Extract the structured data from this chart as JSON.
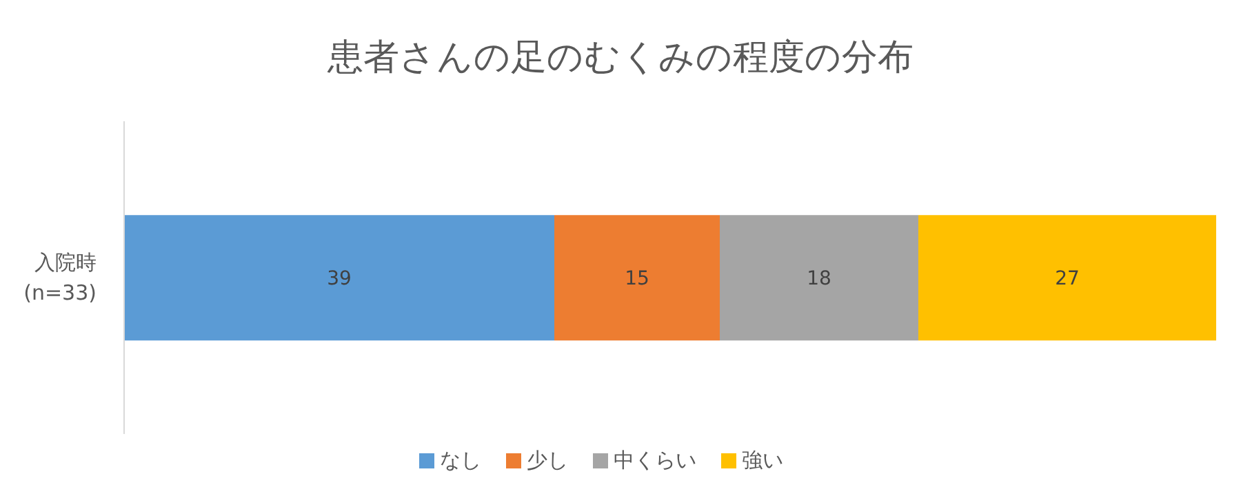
{
  "chart_data": {
    "type": "bar",
    "title": "患者さんの足のむくみの程度の分布",
    "orientation": "horizontal",
    "stacked": true,
    "data_labels": true,
    "grid": false,
    "legend": "bottom",
    "categories": [
      "入院時\n(n=33)"
    ],
    "series": [
      {
        "name": "なし",
        "color": "#5b9bd5",
        "values": [
          39
        ]
      },
      {
        "name": "少し",
        "color": "#ed7d31",
        "values": [
          15
        ]
      },
      {
        "name": "中くらい",
        "color": "#a5a5a5",
        "values": [
          18
        ]
      },
      {
        "name": "強い",
        "color": "#ffc000",
        "values": [
          27
        ]
      }
    ]
  }
}
